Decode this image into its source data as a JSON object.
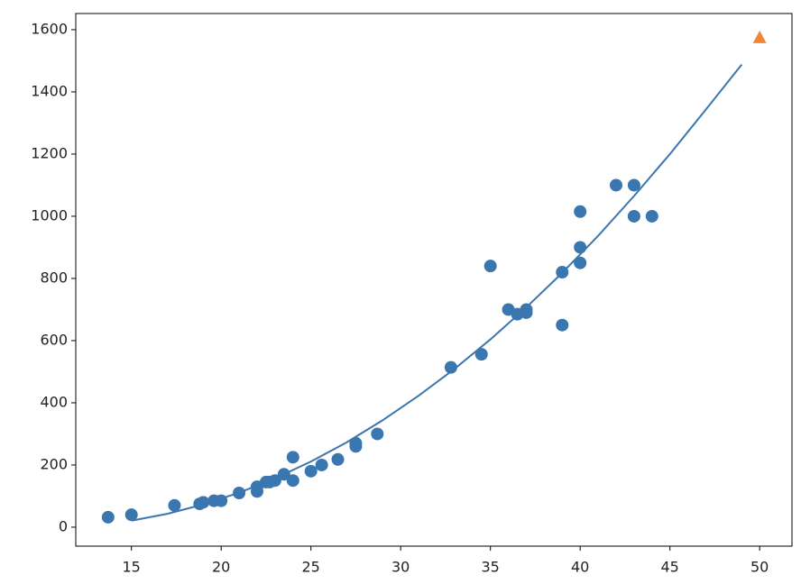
{
  "chart_data": {
    "type": "scatter",
    "xlim": [
      11.9,
      51.8
    ],
    "ylim": [
      -61,
      1652
    ],
    "xticks": [
      15,
      20,
      25,
      30,
      35,
      40,
      45,
      50
    ],
    "yticks": [
      0,
      200,
      400,
      600,
      800,
      1000,
      1200,
      1400,
      1600
    ],
    "series": [
      {
        "kind": "scatter",
        "marker": "circle",
        "color": "#3a76af",
        "x": [
          13.7,
          15,
          17.4,
          18.8,
          19,
          19.6,
          20,
          21,
          22,
          22,
          22.5,
          22.7,
          23,
          23.5,
          24,
          24,
          25,
          25.6,
          26.5,
          27.5,
          27.5,
          28.7,
          32.8,
          34.5,
          35,
          36,
          36.5,
          37,
          37,
          39,
          39,
          40,
          40,
          40,
          42,
          43,
          43,
          44
        ],
        "values": [
          32,
          40,
          70,
          75,
          80,
          85,
          85,
          110,
          115,
          130,
          145,
          145,
          150,
          170,
          150,
          225,
          180,
          200,
          218,
          260,
          270,
          300,
          514,
          556,
          840,
          700,
          685,
          700,
          690,
          820,
          650,
          900,
          850,
          1015,
          1100,
          1100,
          1000,
          1000
        ]
      },
      {
        "kind": "line",
        "color": "#3a76af",
        "x": [
          15,
          17,
          19,
          21,
          23,
          25,
          27,
          29,
          31,
          33,
          35,
          37,
          39,
          41,
          43,
          45,
          47,
          49
        ],
        "values": [
          21,
          43,
          73,
          111,
          157,
          211,
          273,
          344,
          423,
          509,
          604,
          707,
          818,
          937,
          1065,
          1200,
          1343,
          1488
        ]
      },
      {
        "kind": "scatter",
        "marker": "triangle",
        "color": "#ef8636",
        "x": [
          50
        ],
        "values": [
          1574
        ]
      }
    ]
  }
}
